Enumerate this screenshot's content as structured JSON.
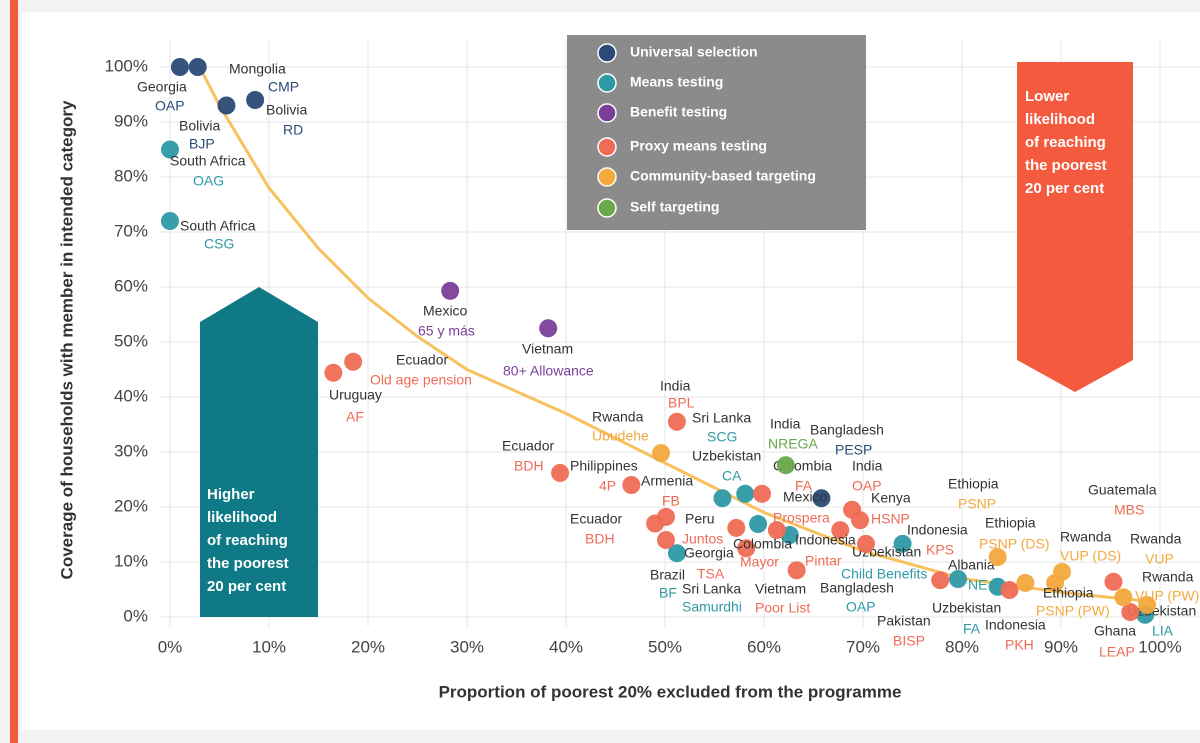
{
  "chart_data": {
    "type": "scatter",
    "xlabel": "Proportion of poorest 20% excluded from the programme",
    "ylabel": "Coverage of households with member in intended category",
    "xlim": [
      0,
      100
    ],
    "ylim": [
      0,
      100
    ],
    "xticks": [
      {
        "value": 0,
        "label": "0%"
      },
      {
        "value": 10,
        "label": "10%"
      },
      {
        "value": 20,
        "label": "20%"
      },
      {
        "value": 30,
        "label": "30%"
      },
      {
        "value": 40,
        "label": "40%"
      },
      {
        "value": 50,
        "label": "50%"
      },
      {
        "value": 60,
        "label": "60%"
      },
      {
        "value": 70,
        "label": "70%"
      },
      {
        "value": 80,
        "label": "80%"
      },
      {
        "value": 90,
        "label": "90%"
      },
      {
        "value": 100,
        "label": "100%"
      }
    ],
    "yticks": [
      {
        "value": 0,
        "label": "0%"
      },
      {
        "value": 10,
        "label": "10%"
      },
      {
        "value": 20,
        "label": "20%"
      },
      {
        "value": 30,
        "label": "30%"
      },
      {
        "value": 40,
        "label": "40%"
      },
      {
        "value": 50,
        "label": "50%"
      },
      {
        "value": 60,
        "label": "60%"
      },
      {
        "value": 70,
        "label": "70%"
      },
      {
        "value": 80,
        "label": "80%"
      },
      {
        "value": 90,
        "label": "90%"
      },
      {
        "value": 100,
        "label": "100%"
      }
    ],
    "grid": true,
    "annotations": [
      {
        "lines": [
          "Higher",
          "likelihood",
          "of reaching",
          "the poorest",
          "20 per cent"
        ],
        "color": "#0f7a85"
      },
      {
        "lines": [
          "Lower",
          "likelihood",
          "of reaching",
          "the poorest",
          "20 per cent"
        ],
        "color": "#f45a3e"
      }
    ],
    "trend": {
      "color": "#f7c25e",
      "x": [
        3,
        5,
        10,
        15,
        20,
        25,
        30,
        40,
        50,
        60,
        70,
        80,
        90,
        98
      ],
      "y": [
        100,
        93,
        78,
        67,
        58,
        51,
        45,
        37,
        28,
        19,
        12,
        7,
        4.5,
        3
      ]
    },
    "series": [
      {
        "name": "Universal selection",
        "color": "#2b4a77",
        "x": [
          1,
          2.8,
          5.7,
          8.6,
          65.8
        ],
        "y": [
          100,
          100,
          93,
          94,
          21.6
        ],
        "countries": [
          "Georgia",
          "Mongolia",
          "Bolivia",
          "Bolivia",
          "Bangladesh"
        ],
        "programmes": [
          "OAP",
          "CMP",
          "BJP",
          "RD",
          "PESP"
        ]
      },
      {
        "name": "Means testing",
        "color": "#2d9aa5",
        "x": [
          0,
          0,
          55.8,
          58.1,
          51.2,
          59.4,
          62.6,
          74,
          79.6,
          83.6,
          98.5
        ],
        "y": [
          85,
          72,
          21.6,
          22.4,
          11.6,
          16.9,
          14.9,
          13.3,
          6.9,
          5.5,
          0.4
        ],
        "countries": [
          "South Africa",
          "South Africa",
          "Sri Lanka",
          "Uzbekistan",
          "Brazil",
          "Sri Lanka",
          "Bangladesh",
          "Uzbekistan",
          "Albania",
          "Uzbekistan",
          "Uzbekistan"
        ],
        "programmes": [
          "OAG",
          "CSG",
          "SCG",
          "CA",
          "BF",
          "Samurdhi",
          "OAP",
          "Child Benefits",
          "NE",
          "FA",
          "LIA"
        ]
      },
      {
        "name": "Benefit testing",
        "color": "#7b3f99",
        "x": [
          28.3,
          38.2
        ],
        "y": [
          59.3,
          52.5
        ],
        "countries": [
          "Mexico",
          "Vietnam"
        ],
        "programmes": [
          "65 y más",
          "80+ Allowance"
        ]
      },
      {
        "name": "Proxy means testing",
        "color": "#ef6b55",
        "x": [
          16.5,
          18.5,
          51.2,
          39.4,
          46.6,
          50.1,
          49,
          50.1,
          58.2,
          59.8,
          61.3,
          57.2,
          67.7,
          63.3,
          68.9,
          69.7,
          70.3,
          77.8,
          84.8,
          95.3,
          97
        ],
        "y": [
          44.4,
          46.4,
          35.5,
          26.2,
          24,
          18.2,
          17,
          14,
          12.5,
          22.4,
          15.8,
          16.2,
          15.8,
          8.5,
          19.5,
          17.6,
          13.3,
          6.7,
          4.9,
          6.4,
          0.9
        ],
        "countries": [
          "Uruguay",
          "Ecuador",
          "India",
          "Ecuador",
          "Philippines",
          "Armenia",
          "Ecuador",
          "Peru",
          "Georgia",
          "Colombia",
          "Mexico",
          "Colombia",
          "Indonesia",
          "Vietnam",
          "India",
          "Kenya",
          "Indonesia",
          "Pakistan",
          "Indonesia",
          "Guatemala",
          "Ghana"
        ],
        "programmes": [
          "AF",
          "Old age pension",
          "BPL",
          "BDH",
          "4P",
          "FB",
          "BDH",
          "Juntos",
          "TSA",
          "FA",
          "Prospera",
          "Mayor",
          "Pintar",
          "Poor List",
          "OAP",
          "HSNP",
          "KPS",
          "BISP",
          "PKH",
          "MBS",
          "LEAP"
        ]
      },
      {
        "name": "Community-based targeting",
        "color": "#f3a93c",
        "x": [
          49.6,
          83.6,
          86.4,
          89.4,
          90.1,
          96.3,
          98.7
        ],
        "y": [
          29.8,
          10.9,
          6.2,
          6.2,
          8.2,
          3.6,
          2.2
        ],
        "countries": [
          "Rwanda",
          "Ethiopia",
          "Ethiopia",
          "Ethiopia",
          "Rwanda",
          "Rwanda",
          "Rwanda"
        ],
        "programmes": [
          "Ubudehe",
          "PSNP",
          "PSNP (DS)",
          "PSNP (PW)",
          "VUP (DS)",
          "VUP",
          "VUP (PW)"
        ]
      },
      {
        "name": "Self targeting",
        "color": "#69a94c",
        "x": [
          62.2
        ],
        "y": [
          27.6
        ],
        "countries": [
          "India"
        ],
        "programmes": [
          "NREGA"
        ]
      }
    ]
  }
}
